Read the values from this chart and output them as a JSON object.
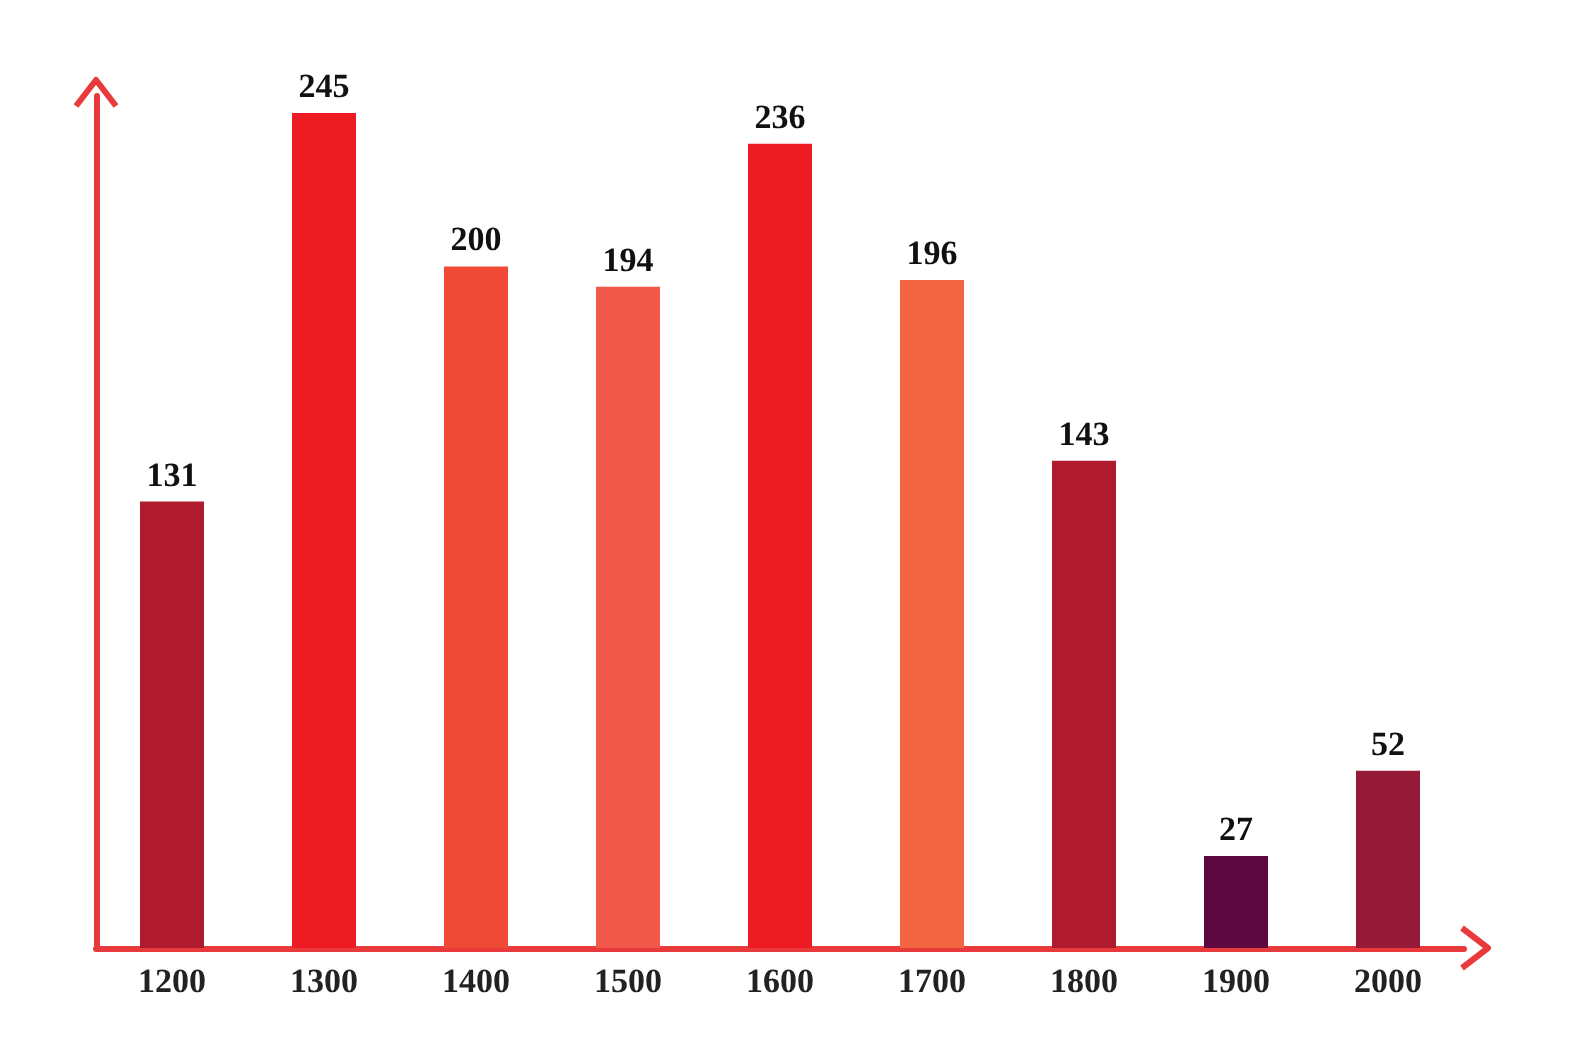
{
  "chart_data": {
    "type": "bar",
    "categories": [
      "1200",
      "1300",
      "1400",
      "1500",
      "1600",
      "1700",
      "1800",
      "1900",
      "2000"
    ],
    "values": [
      131,
      245,
      200,
      194,
      236,
      196,
      143,
      27,
      52
    ],
    "colors": [
      "#b01c2e",
      "#ed1c24",
      "#ef4a36",
      "#f05849",
      "#ed1c24",
      "#f26540",
      "#b01c2e",
      "#5e0842",
      "#951a37"
    ],
    "data_labels": true
  }
}
